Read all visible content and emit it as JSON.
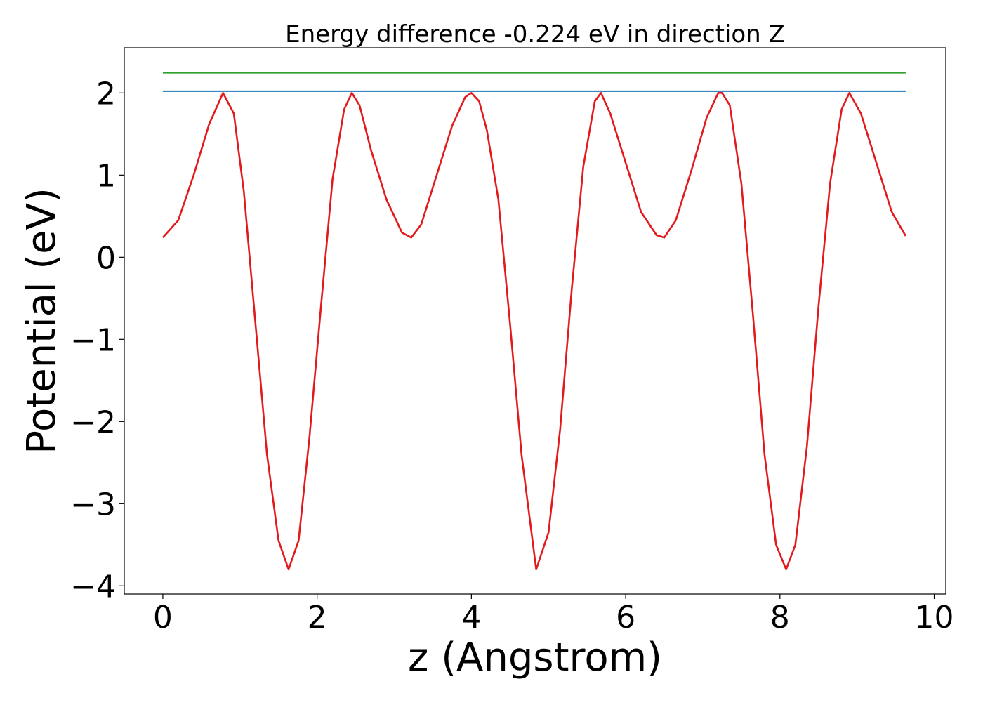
{
  "chart_data": {
    "type": "line",
    "title": "Energy difference -0.224 eV in direction Z",
    "xlabel": "z (Angstrom)",
    "ylabel": "Potential (eV)",
    "xlim": [
      -0.5,
      10.15
    ],
    "ylim": [
      -4.1,
      2.55
    ],
    "xticks": [
      0,
      2,
      4,
      6,
      8,
      10
    ],
    "yticks": [
      -4,
      -3,
      -2,
      -1,
      0,
      1,
      2
    ],
    "xtick_labels": [
      "0",
      "2",
      "4",
      "6",
      "8",
      "10"
    ],
    "ytick_labels": [
      "−4",
      "−3",
      "−2",
      "−1",
      "0",
      "1",
      "2"
    ],
    "grid": false,
    "legend": "none",
    "series": [
      {
        "color": "#2ca02c",
        "style": "horizontal",
        "x": [
          0,
          9.63
        ],
        "y": [
          2.245,
          2.245
        ]
      },
      {
        "color": "#1f77b4",
        "style": "horizontal",
        "x": [
          0,
          9.63
        ],
        "y": [
          2.021,
          2.021
        ]
      },
      {
        "color": "#e31a1c",
        "style": "curve",
        "x": [
          0,
          0.2,
          0.4,
          0.6,
          0.78,
          0.92,
          1.05,
          1.2,
          1.35,
          1.5,
          1.63,
          1.76,
          1.9,
          2.05,
          2.2,
          2.35,
          2.45,
          2.55,
          2.7,
          2.9,
          3.1,
          3.22,
          3.35,
          3.55,
          3.75,
          3.92,
          4.0,
          4.1,
          4.2,
          4.35,
          4.5,
          4.65,
          4.84,
          5.0,
          5.15,
          5.3,
          5.45,
          5.6,
          5.68,
          5.8,
          6.0,
          6.2,
          6.4,
          6.5,
          6.65,
          6.85,
          7.05,
          7.2,
          7.25,
          7.35,
          7.5,
          7.65,
          7.8,
          7.95,
          8.08,
          8.2,
          8.35,
          8.5,
          8.65,
          8.8,
          8.9,
          9.05,
          9.25,
          9.45,
          9.63
        ],
        "y": [
          0.24,
          0.45,
          1.0,
          1.62,
          2.0,
          1.75,
          0.8,
          -0.8,
          -2.4,
          -3.45,
          -3.8,
          -3.45,
          -2.2,
          -0.6,
          0.95,
          1.8,
          2.0,
          1.85,
          1.3,
          0.7,
          0.3,
          0.24,
          0.4,
          1.0,
          1.6,
          1.95,
          2.0,
          1.9,
          1.55,
          0.7,
          -0.8,
          -2.4,
          -3.8,
          -3.35,
          -2.1,
          -0.4,
          1.1,
          1.9,
          2.0,
          1.75,
          1.15,
          0.55,
          0.27,
          0.24,
          0.45,
          1.05,
          1.7,
          2.0,
          2.0,
          1.85,
          0.9,
          -0.7,
          -2.4,
          -3.5,
          -3.8,
          -3.5,
          -2.3,
          -0.6,
          0.9,
          1.8,
          2.0,
          1.75,
          1.15,
          0.55,
          0.26
        ]
      }
    ]
  }
}
